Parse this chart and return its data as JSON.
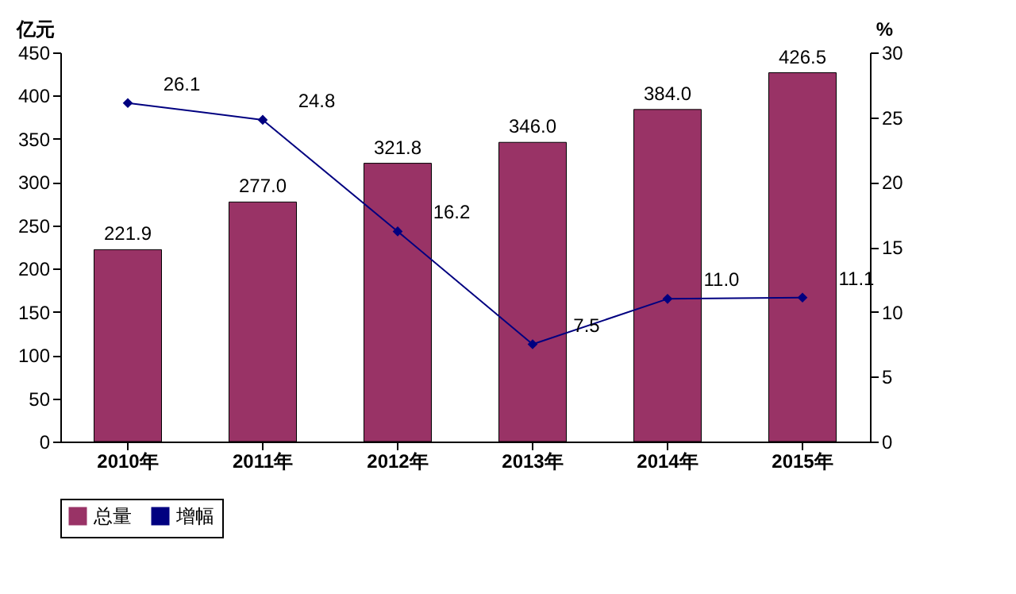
{
  "chart_data": {
    "type": "bar",
    "categories": [
      "2010年",
      "2011年",
      "2012年",
      "2013年",
      "2014年",
      "2015年"
    ],
    "ylabel": "亿元",
    "y2label": "%",
    "ylim": [
      0,
      450
    ],
    "yticks": [
      0,
      50,
      100,
      150,
      200,
      250,
      300,
      350,
      400,
      450
    ],
    "y2lim": [
      0,
      30
    ],
    "y2ticks": [
      0,
      5,
      10,
      15,
      20,
      25,
      30
    ],
    "legend": "bottom",
    "marker": "diamond",
    "grid": false,
    "series": [
      {
        "name": "总量",
        "color": "#993366",
        "values": [
          221.9,
          277.0,
          321.8,
          346.0,
          384.0,
          426.5
        ],
        "value_labels": [
          "221.9",
          "277.0",
          "321.8",
          "346.0",
          "384.0",
          "426.5"
        ]
      },
      {
        "name": "增幅",
        "type": "line",
        "axis": "y2",
        "color": "#000080",
        "values": [
          26.1,
          24.8,
          16.2,
          7.5,
          11.0,
          11.1
        ],
        "value_labels": [
          "26.1",
          "24.8",
          "16.2",
          "7.5",
          "11.0",
          "11.1"
        ]
      }
    ]
  }
}
